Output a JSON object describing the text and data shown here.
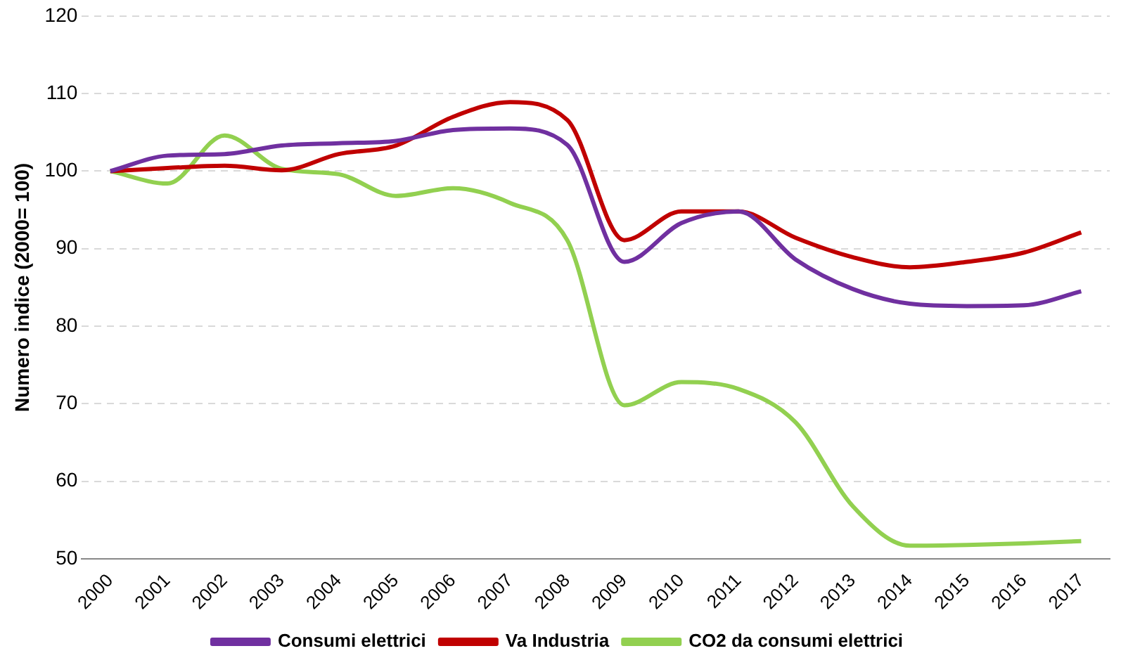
{
  "chart_data": {
    "type": "line",
    "ylabel": "Numero indice (2000= 100)",
    "categories": [
      "2000",
      "2001",
      "2002",
      "2003",
      "2004",
      "2005",
      "2006",
      "2007",
      "2008",
      "2009",
      "2010",
      "2011",
      "2012",
      "2013",
      "2014",
      "2015",
      "2016",
      "2017"
    ],
    "series": [
      {
        "name": "Consumi elettrici",
        "color": "#7030a0",
        "values": [
          100,
          102.0,
          102.2,
          103.3,
          103.6,
          103.9,
          105.3,
          105.5,
          103.4,
          88.3,
          93.3,
          94.8,
          88.6,
          84.8,
          82.9,
          82.6,
          82.7,
          84.5
        ]
      },
      {
        "name": "Va Industria",
        "color": "#c00000",
        "values": [
          100,
          100.4,
          100.7,
          100.1,
          102.2,
          103.3,
          107.0,
          108.9,
          106.6,
          91.1,
          94.8,
          94.8,
          91.4,
          88.9,
          87.6,
          88.3,
          89.5,
          92.1
        ]
      },
      {
        "name": "CO2 da consumi elettrici",
        "color": "#92d050",
        "values": [
          100,
          98.4,
          104.6,
          100.3,
          99.6,
          96.8,
          97.8,
          95.9,
          91.1,
          69.8,
          72.8,
          71.9,
          67.6,
          56.8,
          51.7,
          51.8,
          52.0,
          52.3
        ]
      }
    ],
    "ylim": [
      50,
      120
    ],
    "yticks": [
      50,
      60,
      70,
      80,
      90,
      100,
      110,
      120
    ],
    "grid": "y",
    "legend": "bottom",
    "marker": "none",
    "line_style": "solid"
  }
}
